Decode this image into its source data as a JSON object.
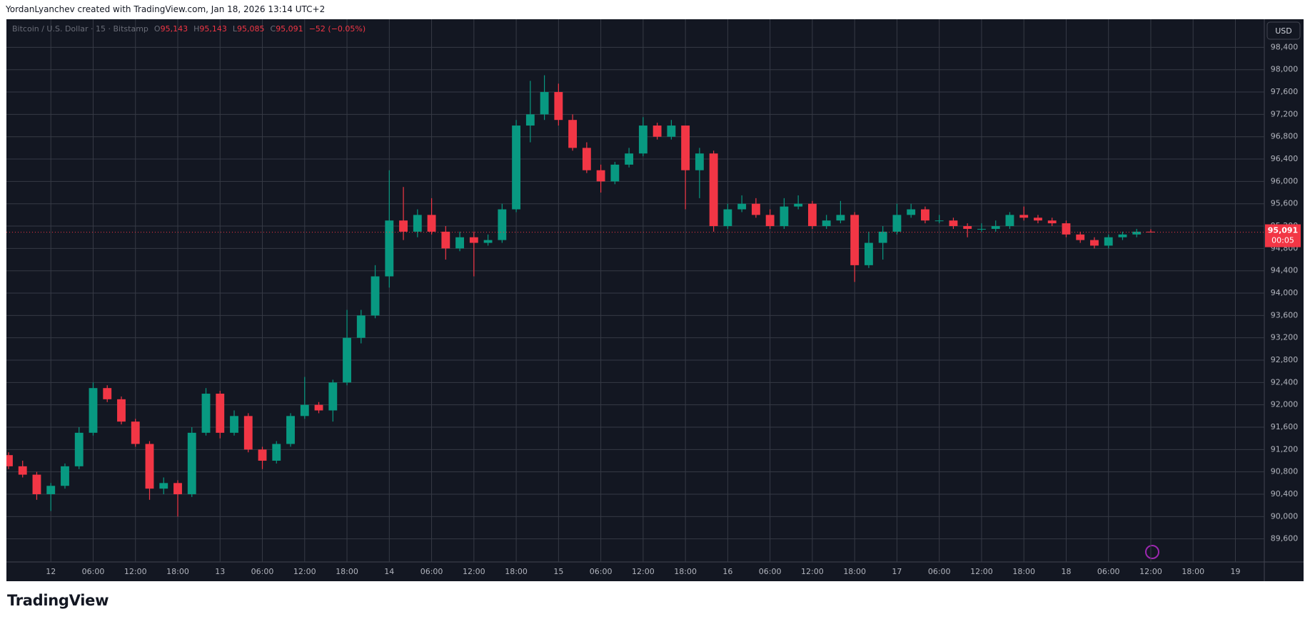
{
  "attribution": "YordanLyanchev created with TradingView.com, Jan 18, 2026 13:14 UTC+2",
  "brand": "TradingView",
  "chart_data": {
    "type": "candlestick",
    "legend": {
      "symbol": "Bitcoin / U.S. Dollar · 15 · Bitstamp",
      "open_label": "O",
      "open": "95,143",
      "high_label": "H",
      "high": "95,143",
      "low_label": "L",
      "low": "95,085",
      "close_label": "C",
      "close": "95,091",
      "change": "−52 (−0.05%)"
    },
    "currency": "USD",
    "last_price": {
      "value": 95091,
      "label": "95,091"
    },
    "countdown": "00:05",
    "up_color": "#089981",
    "down_color": "#f23645",
    "grid": true,
    "categories": [
      null,
      null,
      null,
      "12",
      null,
      null,
      "06:00",
      null,
      null,
      "12:00",
      null,
      null,
      "18:00",
      null,
      null,
      "13",
      null,
      null,
      "06:00",
      null,
      null,
      "12:00",
      null,
      null,
      "18:00",
      null,
      null,
      "14",
      null,
      null,
      "06:00",
      null,
      null,
      "12:00",
      null,
      null,
      "18:00",
      null,
      null,
      "15",
      null,
      null,
      "06:00",
      null,
      null,
      "12:00",
      null,
      null,
      "18:00",
      null,
      null,
      "16",
      null,
      null,
      "06:00",
      null,
      null,
      "12:00",
      null,
      null,
      "18:00",
      null,
      null,
      "17",
      null,
      null,
      "06:00",
      null,
      null,
      "12:00",
      null,
      null,
      "18:00",
      null,
      null,
      "18",
      null,
      null,
      "06:00",
      null,
      null,
      "12:00",
      null,
      null,
      "18:00",
      null,
      null,
      "19",
      null,
      null
    ],
    "open": [
      91100,
      90900,
      90750,
      90400,
      90550,
      90900,
      91500,
      92300,
      92100,
      91700,
      91300,
      90500,
      90600,
      90400,
      91500,
      92200,
      91500,
      91800,
      91200,
      91000,
      91300,
      91800,
      92000,
      91900,
      92400,
      93200,
      93600,
      94300,
      95300,
      95100,
      95400,
      95100,
      94800,
      95000,
      94900,
      94950,
      95500,
      97000,
      97200,
      97600,
      97100,
      96600,
      96200,
      96000,
      96300,
      96500,
      97000,
      96800,
      97000,
      96200,
      96500,
      95200,
      95500,
      95600,
      95400,
      95200,
      95550,
      95600,
      95200,
      95300,
      95400,
      94500,
      94900,
      95100,
      95400,
      95500,
      95300,
      95300,
      95200,
      95150,
      95150,
      95200,
      95400,
      95350,
      95300,
      95250,
      95050,
      94950,
      94850,
      95000,
      95050,
      95100,
      null,
      null,
      null,
      null,
      null,
      null,
      null,
      null
    ],
    "high": [
      91150,
      91000,
      90800,
      90600,
      90950,
      91600,
      92400,
      92350,
      92150,
      91750,
      91350,
      90700,
      90650,
      91600,
      92300,
      92250,
      91900,
      91850,
      91250,
      91350,
      91850,
      92500,
      92050,
      92450,
      93700,
      93700,
      94500,
      96200,
      95900,
      95500,
      95700,
      95200,
      95100,
      95100,
      95050,
      95600,
      97100,
      97800,
      97900,
      97750,
      97200,
      96700,
      96300,
      96350,
      96600,
      97150,
      97050,
      97100,
      97000,
      96600,
      96550,
      95600,
      95750,
      95700,
      95500,
      95700,
      95750,
      95650,
      95400,
      95650,
      95450,
      95100,
      95200,
      95600,
      95600,
      95550,
      95400,
      95350,
      95250,
      95250,
      95300,
      95450,
      95550,
      95400,
      95350,
      95300,
      95100,
      95000,
      95050,
      95100,
      95150,
      95143,
      null,
      null,
      null,
      null,
      null,
      null,
      null,
      null
    ],
    "low": [
      90850,
      90700,
      90300,
      90100,
      90500,
      90850,
      91450,
      92050,
      91650,
      91250,
      90300,
      90400,
      90000,
      90350,
      91450,
      91400,
      91450,
      91150,
      90850,
      90950,
      91250,
      91750,
      91850,
      91700,
      92350,
      93100,
      93550,
      94100,
      94950,
      95000,
      95050,
      94600,
      94750,
      94300,
      94850,
      94900,
      95450,
      96700,
      97100,
      97000,
      96550,
      96150,
      95800,
      95950,
      96250,
      96450,
      96750,
      96750,
      95500,
      95700,
      95100,
      95150,
      95450,
      95350,
      95150,
      95150,
      95500,
      95150,
      95150,
      95250,
      94200,
      94450,
      94600,
      95050,
      95350,
      95250,
      95250,
      95150,
      95000,
      95100,
      95100,
      95150,
      95300,
      95250,
      95200,
      95000,
      94900,
      94800,
      94800,
      94950,
      95000,
      95085,
      null,
      null,
      null,
      null,
      null,
      null,
      null,
      null
    ],
    "close": [
      90900,
      90750,
      90400,
      90550,
      90900,
      91500,
      92300,
      92100,
      91700,
      91300,
      90500,
      90600,
      90400,
      91500,
      92200,
      91500,
      91800,
      91200,
      91000,
      91300,
      91800,
      92000,
      91900,
      92400,
      93200,
      93600,
      94300,
      95300,
      95100,
      95400,
      95100,
      94800,
      95000,
      94900,
      94950,
      95500,
      97000,
      97200,
      97600,
      97100,
      96600,
      96200,
      96000,
      96300,
      96500,
      97000,
      96800,
      97000,
      96200,
      96500,
      95200,
      95500,
      95600,
      95400,
      95200,
      95550,
      95600,
      95200,
      95300,
      95400,
      94500,
      94900,
      95100,
      95400,
      95500,
      95300,
      95300,
      95200,
      95150,
      95150,
      95200,
      95400,
      95350,
      95300,
      95250,
      95050,
      94950,
      94850,
      95000,
      95050,
      95100,
      95091,
      null,
      null,
      null,
      null,
      null,
      null,
      null,
      null
    ],
    "ylim": [
      89200,
      98890
    ],
    "yticks": [
      {
        "value": 89600,
        "label": "89,600"
      },
      {
        "value": 90000,
        "label": "90,000"
      },
      {
        "value": 90400,
        "label": "90,400"
      },
      {
        "value": 90800,
        "label": "90,800"
      },
      {
        "value": 91200,
        "label": "91,200"
      },
      {
        "value": 91600,
        "label": "91,600"
      },
      {
        "value": 92000,
        "label": "92,000"
      },
      {
        "value": 92400,
        "label": "92,400"
      },
      {
        "value": 92800,
        "label": "92,800"
      },
      {
        "value": 93200,
        "label": "93,200"
      },
      {
        "value": 93600,
        "label": "93,600"
      },
      {
        "value": 94000,
        "label": "94,000"
      },
      {
        "value": 94400,
        "label": "94,400"
      },
      {
        "value": 94800,
        "label": "94,800"
      },
      {
        "value": 95200,
        "label": "95,200"
      },
      {
        "value": 95600,
        "label": "95,600"
      },
      {
        "value": 96000,
        "label": "96,000"
      },
      {
        "value": 96400,
        "label": "96,400"
      },
      {
        "value": 96800,
        "label": "96,800"
      },
      {
        "value": 97200,
        "label": "97,200"
      },
      {
        "value": 97600,
        "label": "97,600"
      },
      {
        "value": 98000,
        "label": "98,000"
      },
      {
        "value": 98400,
        "label": "98,400"
      }
    ]
  }
}
